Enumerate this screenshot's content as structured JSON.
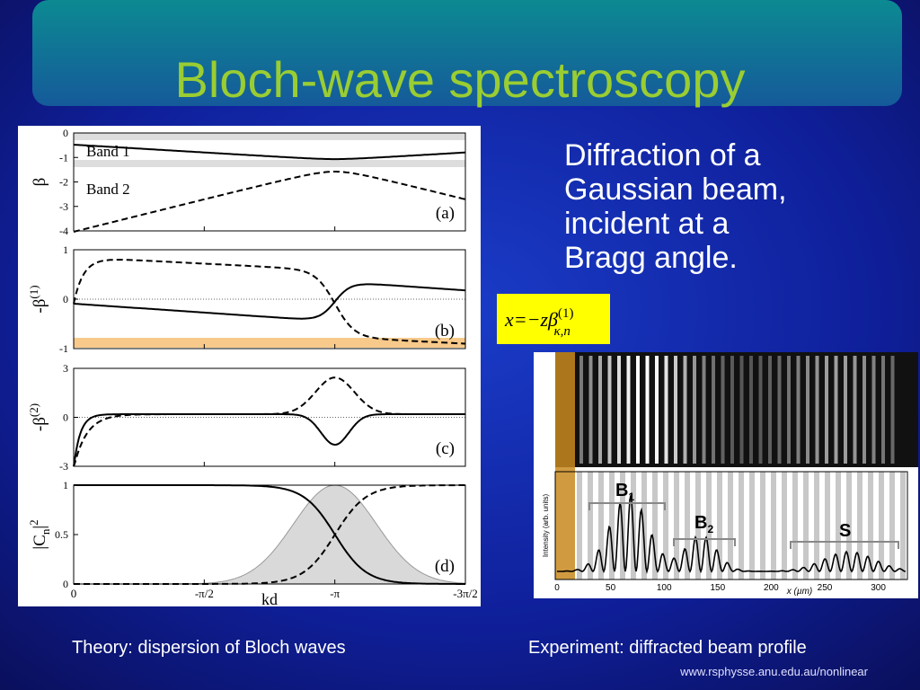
{
  "title": "Bloch-wave spectroscopy",
  "bullet_lines": [
    "Diffraction of a",
    "Gaussian beam,",
    "incident at a",
    "Bragg angle."
  ],
  "formula": {
    "main": "x=−zβ",
    "sup": "(1)",
    "sub": "κ,n"
  },
  "theory_figure": {
    "panels": [
      {
        "label": "(a)",
        "ylabel": "β",
        "yticks": [
          "0",
          "-1",
          "-2",
          "-3",
          "-4"
        ]
      },
      {
        "label": "(b)",
        "ylabel": "-β",
        "ylabel_sup": "(1)",
        "yticks": [
          "1",
          "0",
          "-1"
        ]
      },
      {
        "label": "(c)",
        "ylabel": "-β",
        "ylabel_sup": "(2)",
        "yticks": [
          "3",
          "0",
          "-3"
        ]
      },
      {
        "label": "(d)",
        "ylabel": "|C",
        "ylabel_sub": "n",
        "ylabel_tail": "|",
        "ylabel_sup": "2",
        "yticks": [
          "1",
          "0.5",
          "0"
        ]
      }
    ],
    "band_labels": [
      "Band 1",
      "Band 2"
    ],
    "xlabel": "kd",
    "xticks": [
      "0",
      "-π/2",
      "-π",
      "-3π/2"
    ]
  },
  "experiment_figure": {
    "ylabel": "Intensity (arb. units)",
    "xlabel": "x (µm)",
    "xticks": [
      "0",
      "50",
      "100",
      "150",
      "200",
      "250",
      "300"
    ],
    "groups": [
      {
        "main": "B",
        "sub": "1"
      },
      {
        "main": "B",
        "sub": "2"
      },
      {
        "main": "S"
      }
    ]
  },
  "captions": [
    "Theory: dispersion of Bloch waves",
    "Experiment: diffracted beam profile"
  ],
  "url": "www.rsphysse.anu.edu.au/nonlinear"
}
